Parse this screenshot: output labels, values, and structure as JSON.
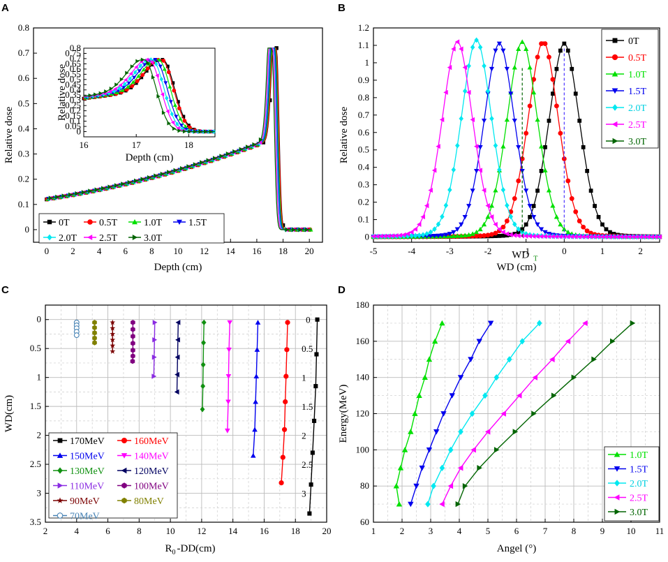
{
  "chart_data": [
    {
      "panel": "A",
      "type": "line",
      "xlabel": "Depth (cm)",
      "ylabel": "Relative dose",
      "xlim": [
        -1,
        21
      ],
      "ylim": [
        -0.05,
        0.8
      ],
      "xticks": [
        "0",
        "2",
        "4",
        "6",
        "8",
        "10",
        "12",
        "14",
        "16",
        "18",
        "20"
      ],
      "yticks": [
        "0",
        "0.1",
        "0.2",
        "0.3",
        "0.4",
        "0.5",
        "0.6",
        "0.7",
        "0.8"
      ],
      "legend": [
        {
          "label": "0T",
          "color": "#000000",
          "marker": "square"
        },
        {
          "label": "0.5T",
          "color": "#ff0000",
          "marker": "circle"
        },
        {
          "label": "1.0T",
          "color": "#00e000",
          "marker": "triangle-up"
        },
        {
          "label": "1.5T",
          "color": "#0000ee",
          "marker": "triangle-down"
        },
        {
          "label": "2.0T",
          "color": "#00e8f0",
          "marker": "diamond"
        },
        {
          "label": "2.5T",
          "color": "#ff00ff",
          "marker": "triangle-left"
        },
        {
          "label": "3.0T",
          "color": "#006400",
          "marker": "triangle-right"
        }
      ],
      "peak_depths": [
        17.5,
        17.48,
        17.42,
        17.36,
        17.3,
        17.24,
        17.15
      ],
      "curve_points": {
        "depth": [
          0,
          2,
          4,
          6,
          8,
          10,
          12,
          14,
          15,
          16,
          16.5,
          17.0,
          17.5,
          18.0,
          18.5,
          20.0
        ],
        "dose": [
          0.12,
          0.135,
          0.145,
          0.155,
          0.165,
          0.18,
          0.2,
          0.235,
          0.265,
          0.32,
          0.37,
          0.55,
          0.7,
          0.05,
          0.0,
          0.0
        ]
      },
      "inset": {
        "xlabel": "Depth (cm)",
        "ylabel": "Relative dose",
        "xlim": [
          16,
          18.5
        ],
        "ylim": [
          -0.05,
          0.8
        ],
        "xticks": [
          "16",
          "17",
          "18"
        ],
        "yticks": [
          "0",
          "0.05",
          "0.1",
          "0.15",
          "0.2",
          "0.25",
          "0.3",
          "0.35",
          "0.4",
          "0.45",
          "0.5",
          "0.55",
          "0.6",
          "0.65",
          "0.7",
          "0.75",
          "0.8"
        ]
      }
    },
    {
      "panel": "B",
      "type": "line",
      "xlabel": "WD (cm)",
      "ylabel": "Relative dose",
      "xlim": [
        -5,
        2.5
      ],
      "ylim": [
        -0.03,
        1.2
      ],
      "xticks": [
        "-5",
        "-4",
        "-3",
        "-2",
        "-1",
        "0",
        "1",
        "2"
      ],
      "yticks": [
        "0",
        "0.1",
        "0.2",
        "0.3",
        "0.4",
        "0.5",
        "0.6",
        "0.7",
        "0.8",
        "0.9",
        "1",
        "1.1",
        "1.2"
      ],
      "annotation": "WD",
      "annotation_sub": "T",
      "series": [
        {
          "name": "0T",
          "color": "#000000",
          "marker": "square",
          "center": 0.0,
          "peak": 1.11
        },
        {
          "name": "0.5T",
          "color": "#ff0000",
          "marker": "circle",
          "center": -0.55,
          "peak": 1.12
        },
        {
          "name": "1.0T",
          "color": "#00e000",
          "marker": "triangle-up",
          "center": -1.1,
          "peak": 1.12
        },
        {
          "name": "1.5T",
          "color": "#0000ee",
          "marker": "triangle-down",
          "center": -1.7,
          "peak": 1.11
        },
        {
          "name": "2.0T",
          "color": "#00e8f0",
          "marker": "diamond",
          "center": -2.3,
          "peak": 1.13
        },
        {
          "name": "2.5T",
          "color": "#ff00ff",
          "marker": "triangle-left",
          "center": -2.8,
          "peak": 1.12
        },
        {
          "name": "3.0T",
          "color": "#006400",
          "marker": "triangle-right",
          "center": -1.1,
          "peak": 0.0
        }
      ],
      "sigma": 0.42
    },
    {
      "panel": "C",
      "type": "line",
      "xlabel": "R",
      "xlabel_sub": "0",
      "xlabel_rest": "-DD(cm)",
      "ylabel": "WD(cm)",
      "xlim": [
        2,
        20
      ],
      "ylim": [
        3.5,
        -0.25
      ],
      "xticks": [
        "2",
        "4",
        "6",
        "8",
        "10",
        "12",
        "14",
        "16",
        "18",
        "20"
      ],
      "yticks": [
        "0",
        "0.5",
        "1",
        "1.5",
        "2",
        "2.5",
        "3",
        "3.5"
      ],
      "inner_labels": [
        "0",
        "0.5",
        "1",
        "1.5",
        "2",
        "2.5",
        "3"
      ],
      "series": [
        {
          "name": "170MeV",
          "color": "#000000",
          "marker": "square",
          "x": [
            19.4,
            19.35,
            19.3,
            19.2,
            19.1,
            19.0,
            18.9
          ],
          "y": [
            0,
            0.6,
            1.15,
            1.75,
            2.3,
            2.85,
            3.35
          ]
        },
        {
          "name": "160MeV",
          "color": "#ff0000",
          "marker": "circle",
          "x": [
            17.5,
            17.45,
            17.4,
            17.35,
            17.3,
            17.2,
            17.1
          ],
          "y": [
            0.05,
            0.52,
            0.98,
            1.42,
            1.9,
            2.38,
            2.82
          ]
        },
        {
          "name": "150MeV",
          "color": "#0000ee",
          "marker": "triangle-up",
          "x": [
            15.6,
            15.55,
            15.5,
            15.45,
            15.4,
            15.3
          ],
          "y": [
            0.05,
            0.52,
            0.98,
            1.42,
            1.9,
            2.35
          ]
        },
        {
          "name": "140MeV",
          "color": "#ff00ff",
          "marker": "triangle-down",
          "x": [
            13.8,
            13.75,
            13.72,
            13.7,
            13.65
          ],
          "y": [
            0.05,
            0.52,
            0.98,
            1.42,
            1.92
          ]
        },
        {
          "name": "130MeV",
          "color": "#109010",
          "marker": "diamond",
          "x": [
            12.15,
            12.12,
            12.1,
            12.08,
            12.05
          ],
          "y": [
            0.05,
            0.4,
            0.78,
            1.15,
            1.55
          ]
        },
        {
          "name": "120MeV",
          "color": "#000060",
          "marker": "triangle-left",
          "x": [
            10.5,
            10.48,
            10.46,
            10.44,
            10.42
          ],
          "y": [
            0.05,
            0.35,
            0.65,
            0.95,
            1.25
          ]
        },
        {
          "name": "110MeV",
          "color": "#8a2be2",
          "marker": "triangle-right",
          "x": [
            9.0,
            8.98,
            8.96,
            8.94
          ],
          "y": [
            0.05,
            0.35,
            0.65,
            0.98
          ]
        },
        {
          "name": "100MeV",
          "color": "#800080",
          "marker": "hexagon",
          "x": [
            7.6,
            7.6,
            7.6,
            7.6,
            7.6,
            7.6,
            7.58
          ],
          "y": [
            0.05,
            0.17,
            0.29,
            0.41,
            0.53,
            0.63,
            0.72
          ]
        },
        {
          "name": "90MeV",
          "color": "#7a0000",
          "marker": "star",
          "x": [
            6.3,
            6.3,
            6.3,
            6.3,
            6.3,
            6.3
          ],
          "y": [
            0.05,
            0.15,
            0.25,
            0.35,
            0.45,
            0.55
          ]
        },
        {
          "name": "80MeV",
          "color": "#808000",
          "marker": "hexagon",
          "x": [
            5.15,
            5.15,
            5.15,
            5.15,
            5.15
          ],
          "y": [
            0.05,
            0.14,
            0.23,
            0.32,
            0.4
          ]
        },
        {
          "name": "70MeV",
          "color": "#4682b4",
          "marker": "open-circle",
          "x": [
            4.0,
            4.0,
            4.0,
            4.0,
            4.0
          ],
          "y": [
            0.05,
            0.1,
            0.15,
            0.21,
            0.27
          ]
        }
      ]
    },
    {
      "panel": "D",
      "type": "line",
      "xlabel": "Angel (°)",
      "ylabel": "Energy(MeV)",
      "xlim": [
        1,
        11
      ],
      "ylim": [
        60,
        180
      ],
      "xticks": [
        "1",
        "2",
        "3",
        "4",
        "5",
        "6",
        "7",
        "8",
        "9",
        "10",
        "11"
      ],
      "yticks": [
        "60",
        "80",
        "100",
        "120",
        "140",
        "160",
        "180"
      ],
      "energies": [
        70,
        80,
        90,
        100,
        110,
        120,
        130,
        140,
        150,
        160,
        170
      ],
      "series": [
        {
          "name": "1.0T",
          "color": "#00e000",
          "marker": "triangle-up",
          "angles": [
            1.9,
            1.8,
            1.95,
            2.1,
            2.3,
            2.45,
            2.6,
            2.8,
            2.95,
            3.15,
            3.4
          ]
        },
        {
          "name": "1.5T",
          "color": "#0000ee",
          "marker": "triangle-down",
          "angles": [
            2.3,
            2.5,
            2.7,
            2.95,
            3.2,
            3.45,
            3.75,
            4.05,
            4.4,
            4.7,
            5.1
          ]
        },
        {
          "name": "2.0T",
          "color": "#00e8f0",
          "marker": "diamond",
          "angles": [
            2.9,
            3.1,
            3.4,
            3.7,
            4.05,
            4.45,
            4.9,
            5.3,
            5.75,
            6.2,
            6.8
          ]
        },
        {
          "name": "2.5T",
          "color": "#ff00ff",
          "marker": "triangle-left",
          "angles": [
            3.4,
            3.7,
            4.05,
            4.5,
            5.0,
            5.55,
            6.1,
            6.65,
            7.25,
            7.8,
            8.4
          ]
        },
        {
          "name": "3.0T",
          "color": "#006400",
          "marker": "triangle-right",
          "angles": [
            3.95,
            4.2,
            4.7,
            5.3,
            5.95,
            6.6,
            7.3,
            8.0,
            8.7,
            9.35,
            10.05
          ]
        }
      ]
    }
  ]
}
